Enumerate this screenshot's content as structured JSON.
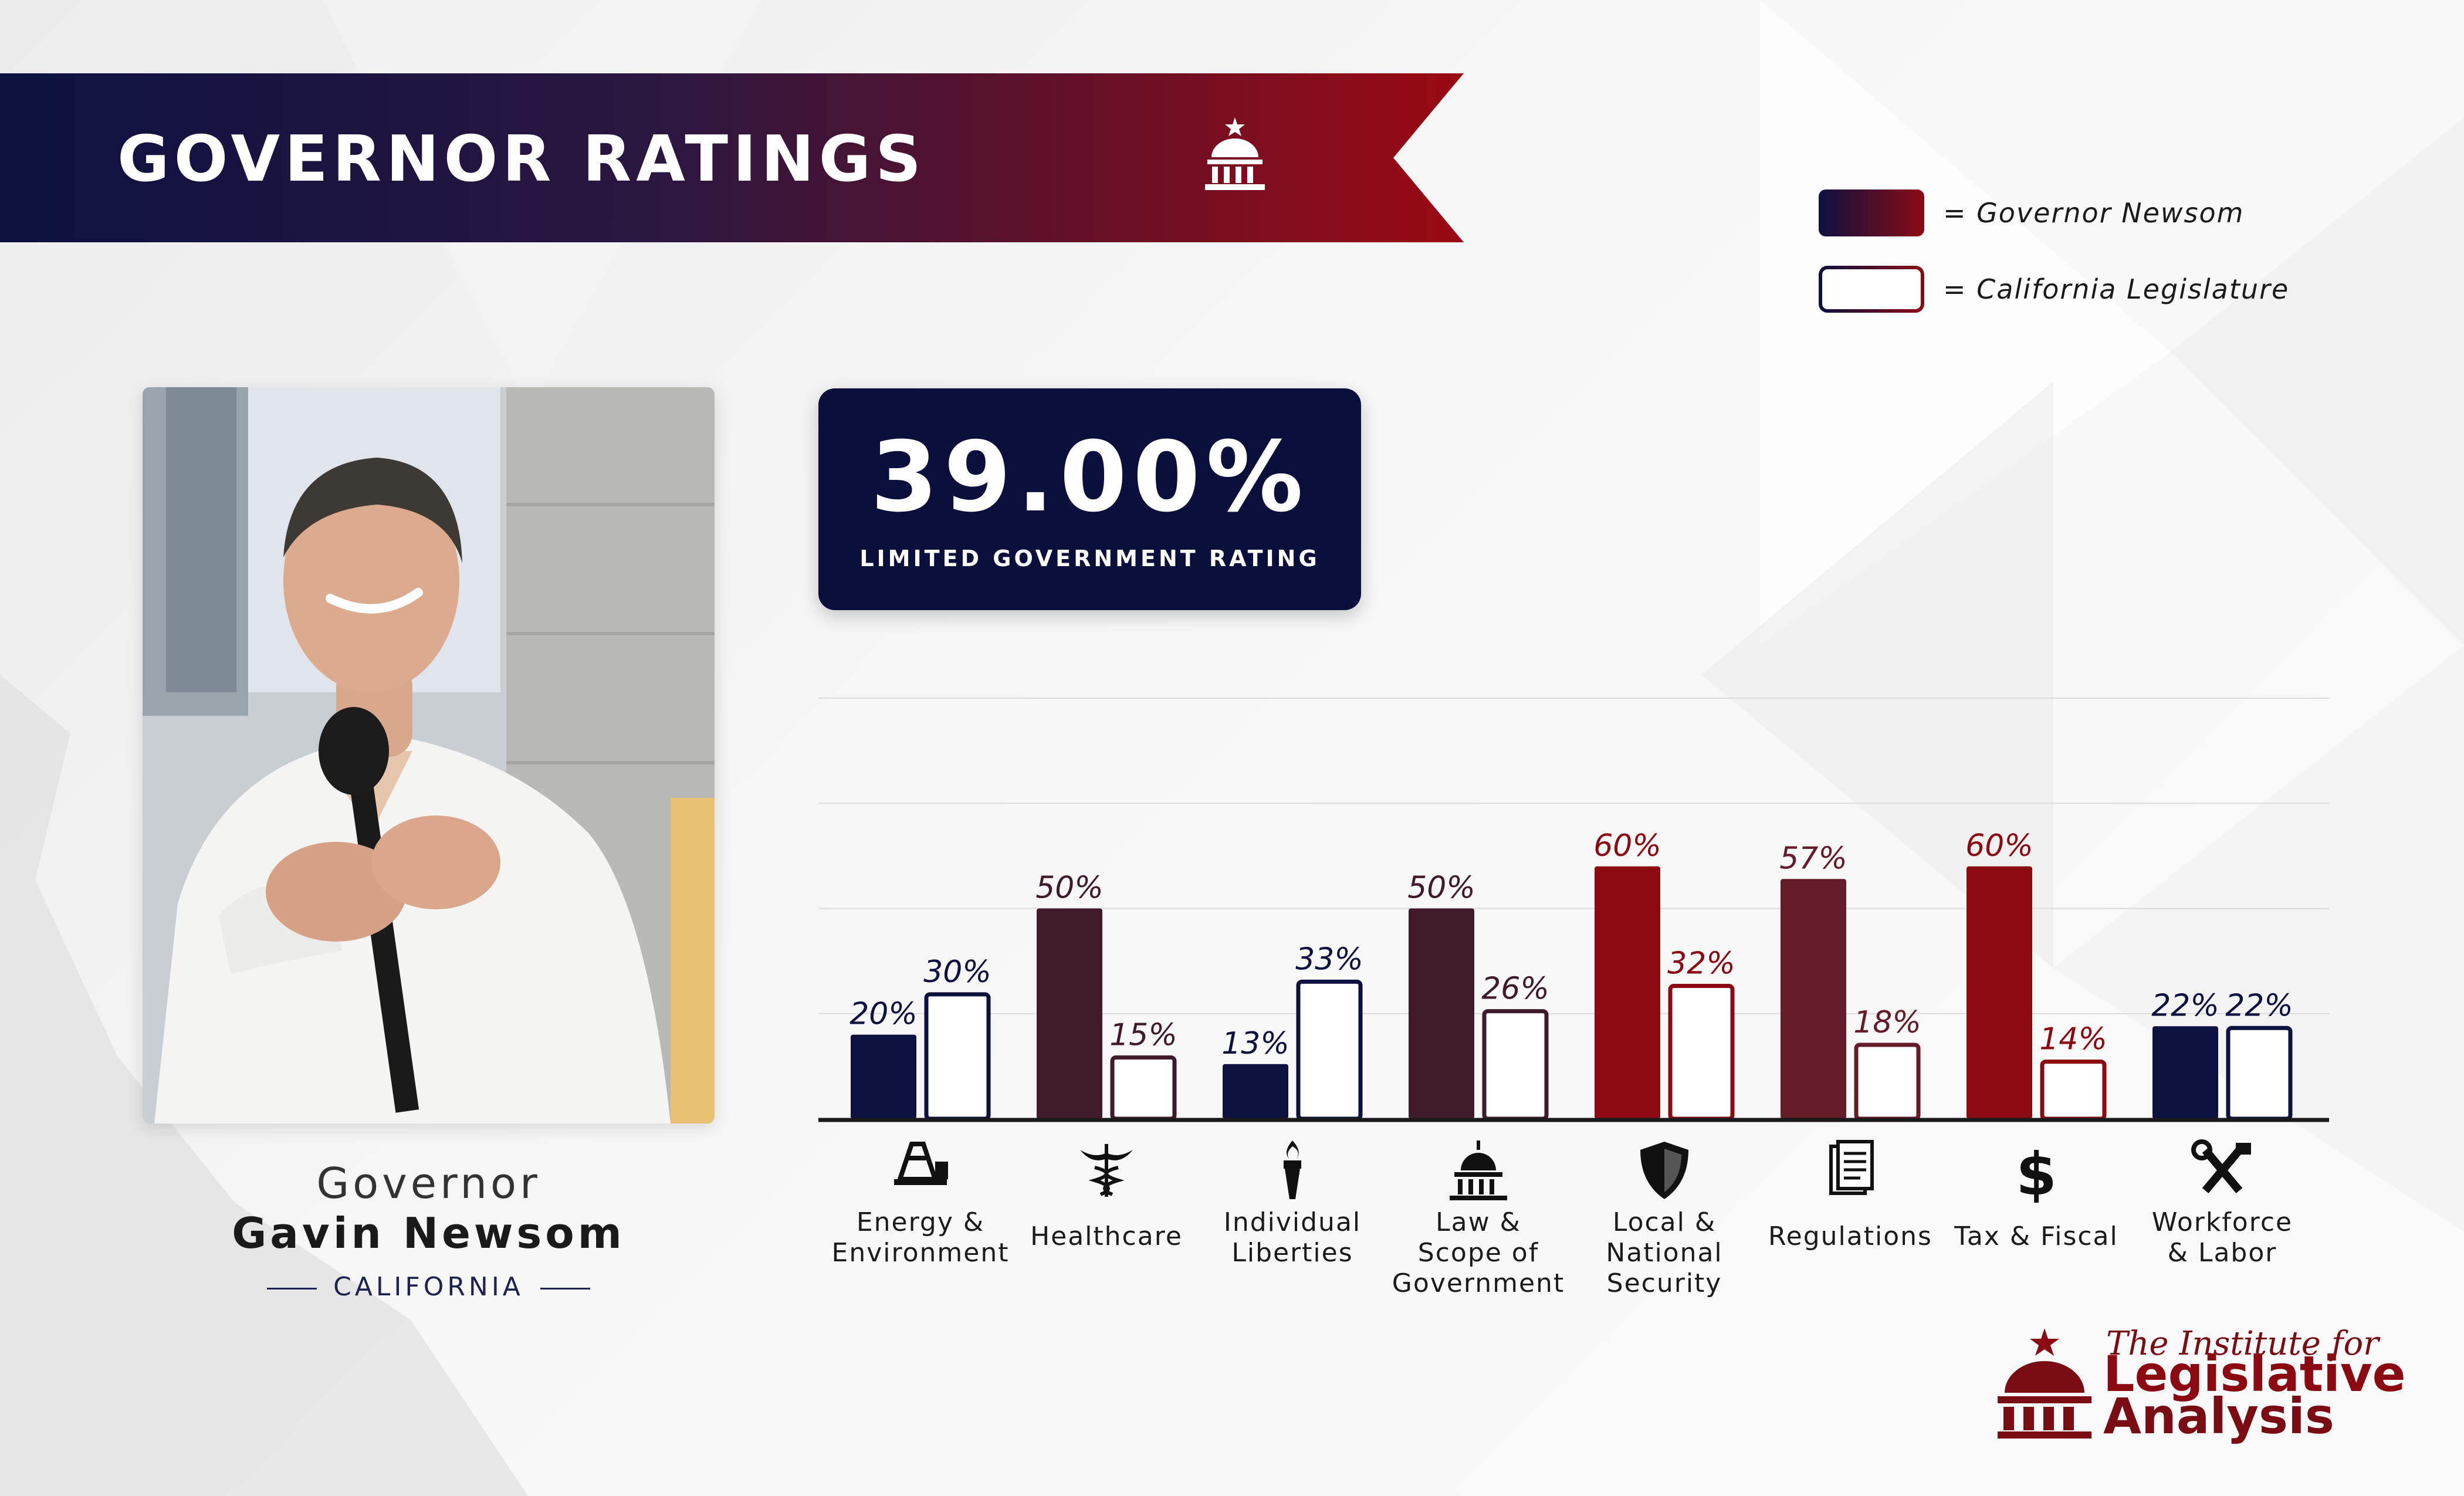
{
  "banner": {
    "title": "GOVERNOR RATINGS"
  },
  "legend": {
    "governor_label": "= Governor Newsom",
    "legislature_label": "= California Legislature"
  },
  "governor": {
    "line1": "Governor",
    "line2": "Gavin Newsom",
    "state": "CALIFORNIA"
  },
  "rating": {
    "value": "39.00%",
    "label": "LIMITED GOVERNMENT RATING"
  },
  "colors": {
    "navy": "#0c1140",
    "maroon": "#3e1a2a",
    "wine": "#651b28",
    "red": "#8b0a12"
  },
  "chart_data": {
    "type": "bar",
    "ylim": [
      0,
      100
    ],
    "categories": [
      {
        "label": "Energy & Environment",
        "icon": "oil-derrick-icon"
      },
      {
        "label": "Healthcare",
        "icon": "caduceus-icon"
      },
      {
        "label": "Individual Liberties",
        "icon": "torch-icon"
      },
      {
        "label": "Law & Scope of Government",
        "icon": "capitol-icon"
      },
      {
        "label": "Local & National Security",
        "icon": "shield-icon"
      },
      {
        "label": "Regulations",
        "icon": "documents-icon"
      },
      {
        "label": "Tax & Fiscal",
        "icon": "dollar-icon"
      },
      {
        "label": "Workforce & Labor",
        "icon": "tools-icon"
      }
    ],
    "series": [
      {
        "name": "Governor Newsom",
        "values": [
          20,
          50,
          13,
          50,
          60,
          57,
          60,
          22
        ],
        "labels": [
          "20%",
          "50%",
          "13%",
          "50%",
          "60%",
          "57%",
          "60%",
          "22%"
        ],
        "colors": [
          "#0c1140",
          "#3e1a2a",
          "#0c1140",
          "#3e1a2a",
          "#8b0a12",
          "#651b28",
          "#8b0a12",
          "#0c1140"
        ]
      },
      {
        "name": "California Legislature",
        "values": [
          30,
          15,
          33,
          26,
          32,
          18,
          14,
          22
        ],
        "labels": [
          "30%",
          "15%",
          "33%",
          "26%",
          "32%",
          "18%",
          "14%",
          "22%"
        ],
        "colors": [
          "#0c1140",
          "#3e1a2a",
          "#0c1140",
          "#3e1a2a",
          "#8b0a12",
          "#651b28",
          "#8b0a12",
          "#0c1140"
        ]
      }
    ]
  },
  "logo": {
    "line1": "The Institute for",
    "line2": "Legislative",
    "line3": "Analysis"
  }
}
